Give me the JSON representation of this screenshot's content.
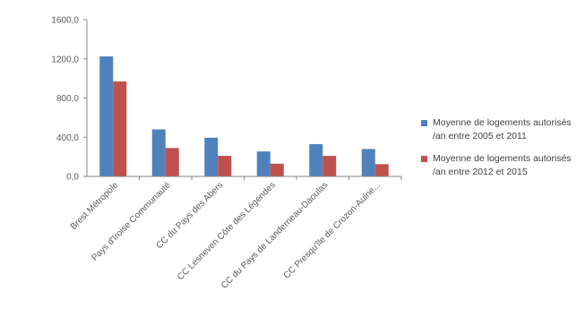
{
  "chart_data": {
    "type": "bar",
    "categories": [
      "Brest Métropole",
      "Pays d'Iroise Communauté",
      "CC du Pays des Abers",
      "CC Lesneven Côte des Légendes",
      "CC du Pays de Landerneau-Daoulas",
      "CC Presqu'île de Crozon-Aulne..."
    ],
    "series": [
      {
        "name": "Moyenne de logements autorisés /an entre 2005 et 2011",
        "color": "#4F81BD",
        "values": [
          1225,
          480,
          395,
          255,
          330,
          280
        ]
      },
      {
        "name": "Moyenne de logements autorisés /an entre 2012 et 2015",
        "color": "#C0504D",
        "values": [
          970,
          290,
          210,
          130,
          210,
          125
        ]
      }
    ],
    "ylim": [
      0,
      1600
    ],
    "yticks": [
      "0,0",
      "400,0",
      "800,0",
      "1200,0",
      "1600,0"
    ],
    "ytick_values": [
      0,
      400,
      800,
      1200,
      1600
    ],
    "grid": false,
    "legend_position": "right",
    "title": "",
    "xlabel": "",
    "ylabel": ""
  }
}
